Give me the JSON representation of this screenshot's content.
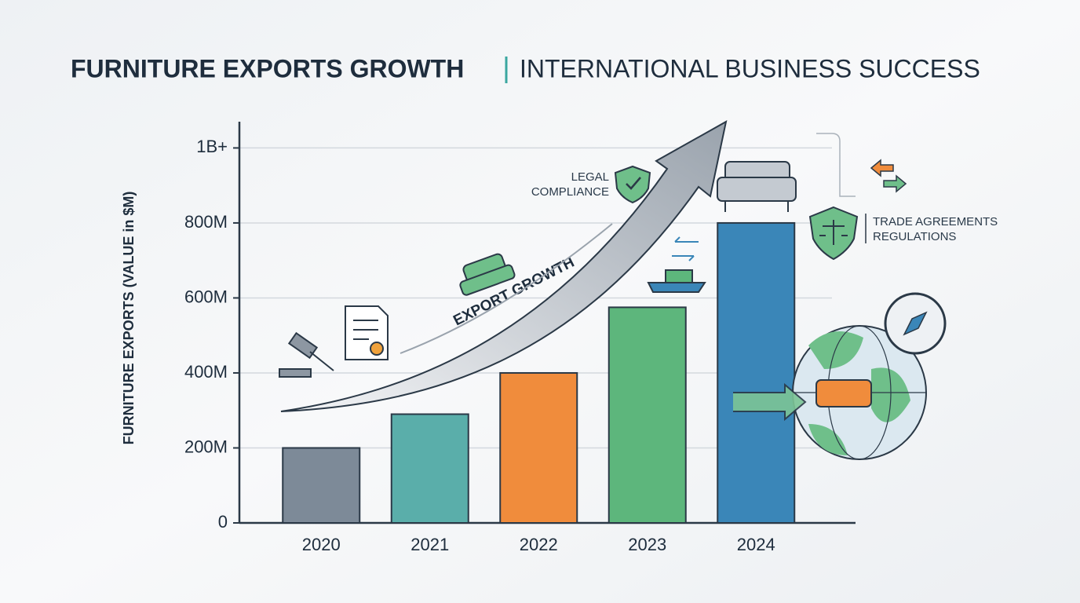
{
  "chart_data": {
    "type": "bar",
    "title": "FURNITURE EXPORTS GROWTH",
    "subtitle": "INTERNATIONAL BUSINESS SUCCESS",
    "y_label": "FURNITURE EXPORTS (VALUE in $M)",
    "categories": [
      "2020",
      "2021",
      "2022",
      "2023",
      "2024"
    ],
    "values": [
      200,
      290,
      400,
      575,
      800
    ],
    "colors": [
      "#7d8a98",
      "#5aaeaa",
      "#f08c3c",
      "#5db67c",
      "#3a86b8"
    ],
    "ylim": [
      0,
      1070
    ],
    "yticks": [
      0,
      {
        "value": 200,
        "label": "200M"
      },
      {
        "value": 400,
        "label": "400M"
      },
      {
        "value": 600,
        "label": "600M"
      },
      {
        "value": 800,
        "label": "800M"
      },
      {
        "value": 1000,
        "label": "1B+"
      }
    ],
    "grid": true,
    "annotations": {
      "arrow": "EXPORT GROWTH",
      "legal": [
        "LEGAL",
        "COMPLIANCE"
      ],
      "trade": [
        "TRADE AGREEMENTS",
        "REGULATIONS"
      ]
    }
  }
}
